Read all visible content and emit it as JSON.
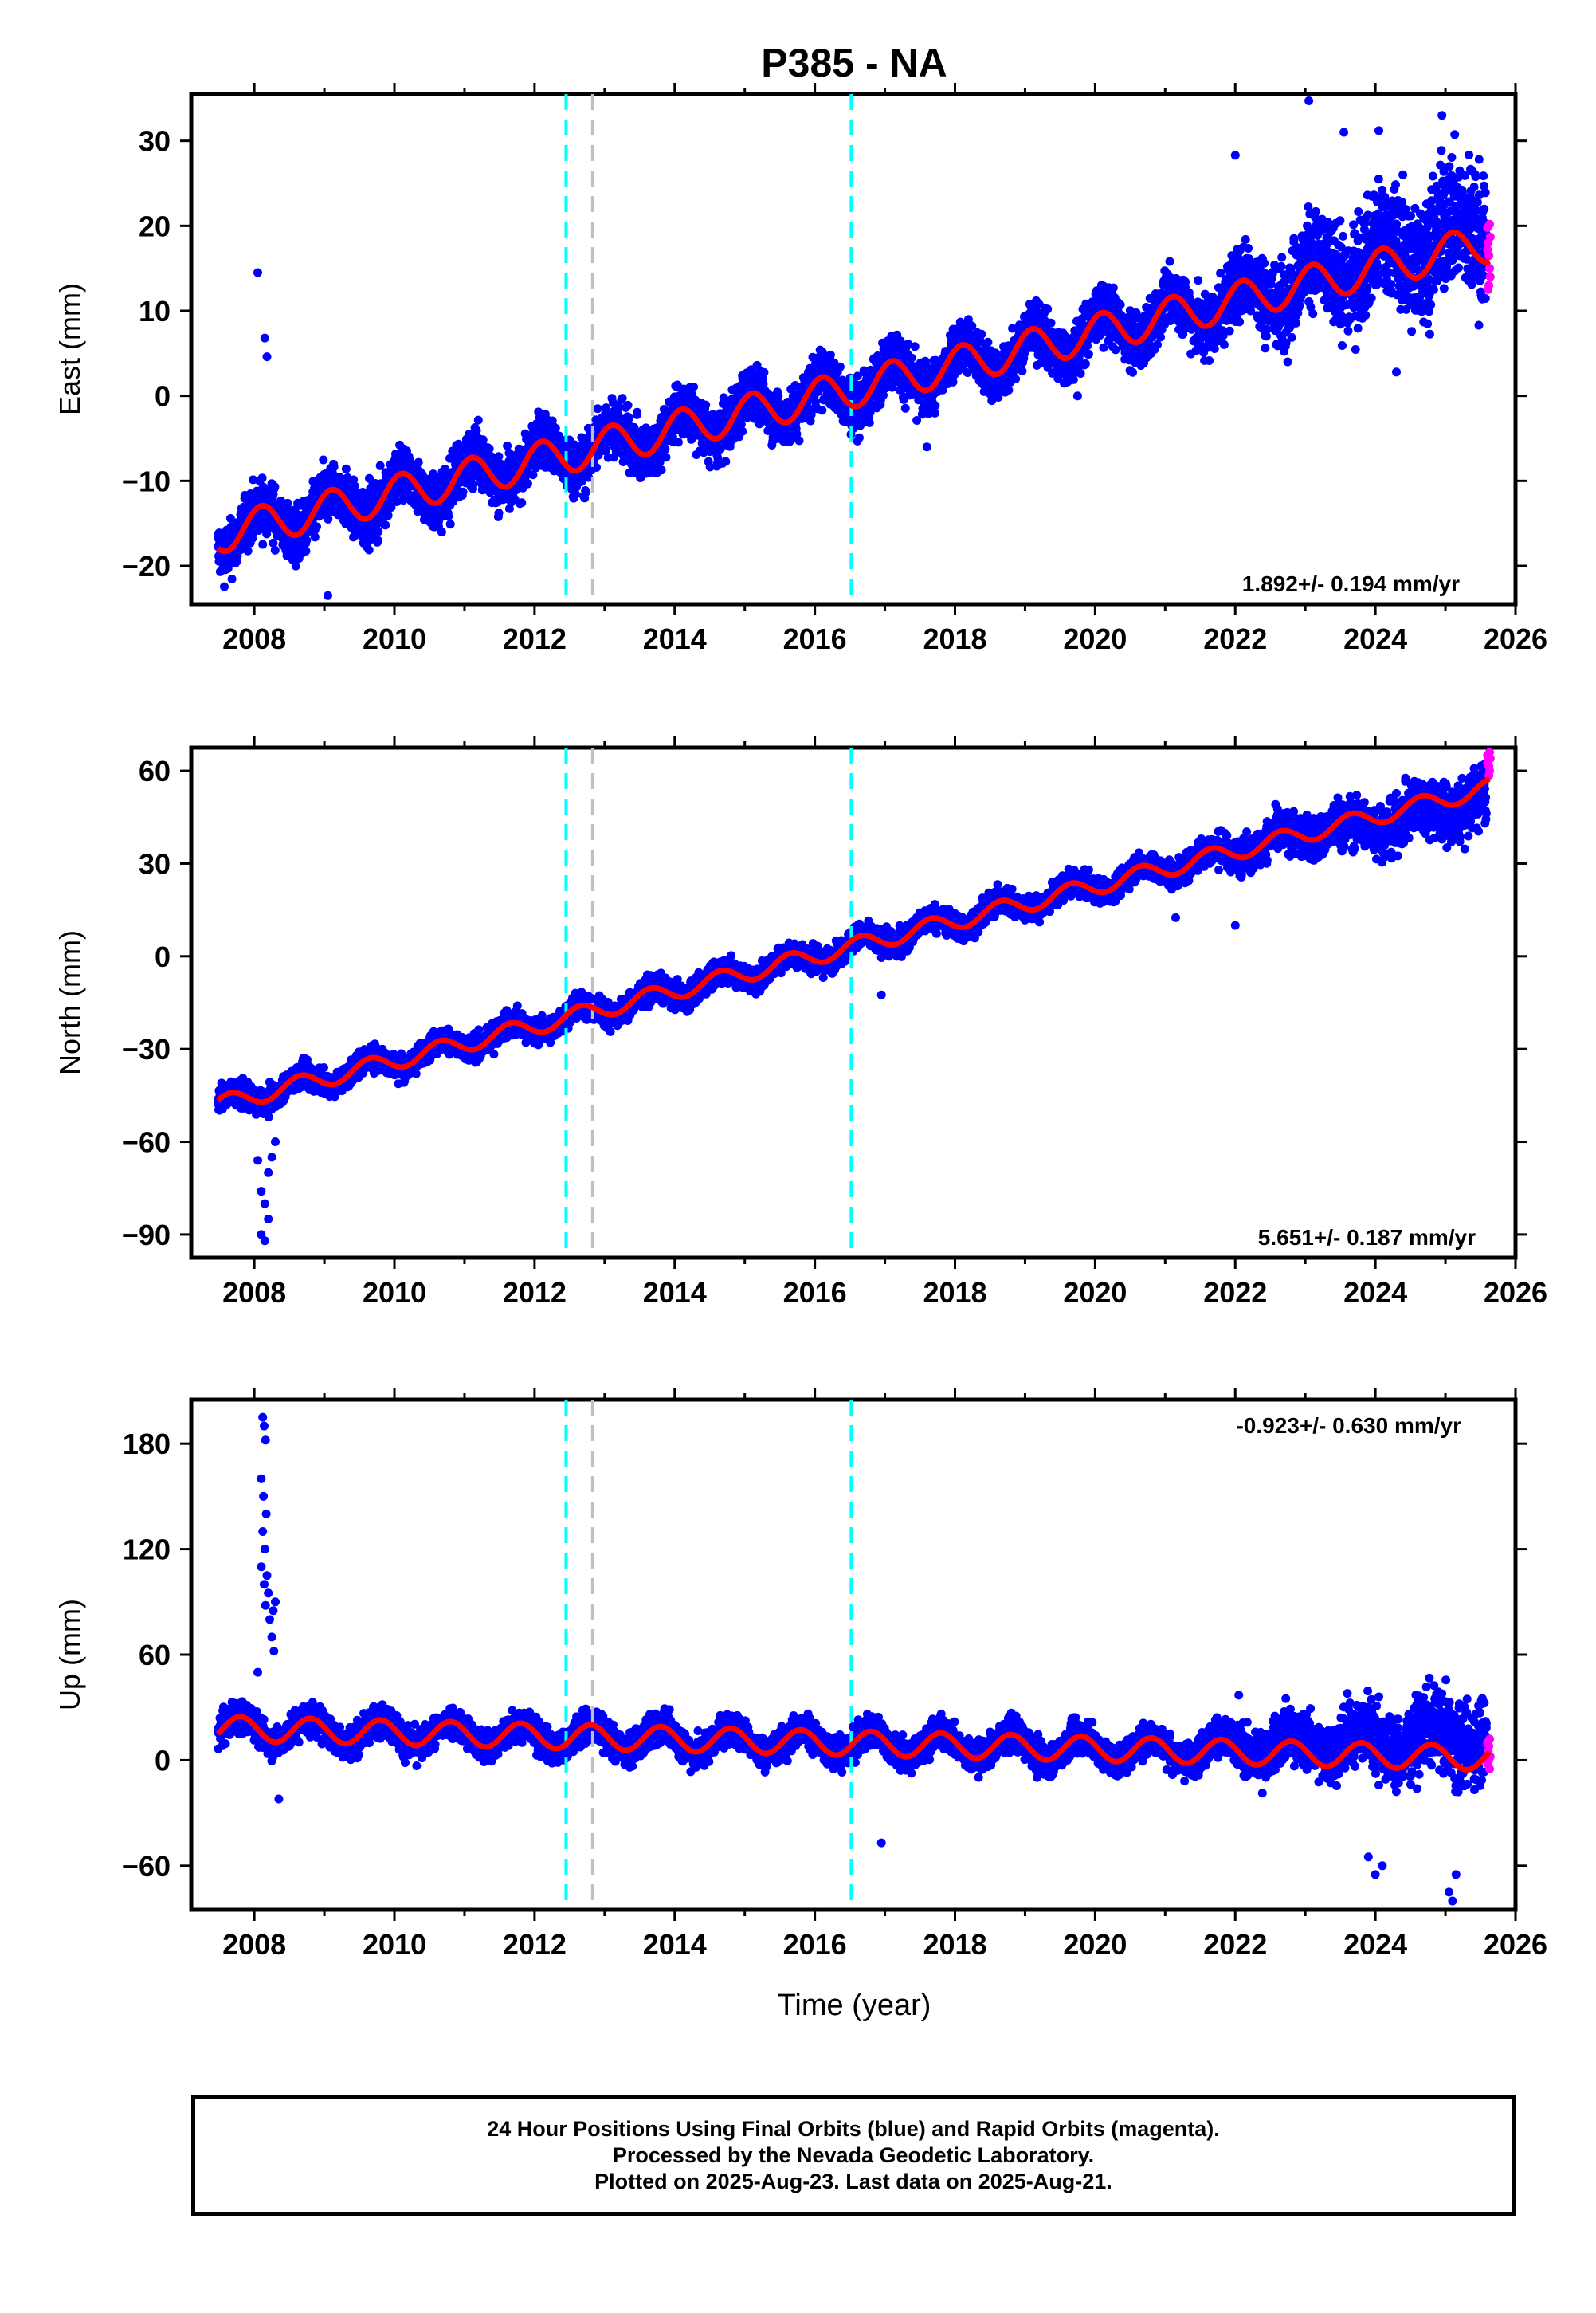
{
  "title": "P385 - NA",
  "xlabel": "Time (year)",
  "caption": {
    "line1": "24 Hour Positions Using Final Orbits (blue) and Rapid Orbits (magenta).",
    "line2": "Processed by the Nevada Geodetic Laboratory.",
    "line3": "Plotted on 2025-Aug-23. Last data on 2025-Aug-21."
  },
  "colors": {
    "final": "#0000ff",
    "rapid": "#ff00ff",
    "model": "#ff0000",
    "event_cyan": "#00ffff",
    "event_gray": "#c0c0c0"
  },
  "chart_data": [
    {
      "type": "scatter",
      "name": "east",
      "ylabel": "East (mm)",
      "xlim": [
        2007.1,
        2026.0
      ],
      "ylim": [
        -24.5,
        35.5
      ],
      "xticks": [
        2008,
        2010,
        2012,
        2014,
        2016,
        2018,
        2020,
        2022,
        2024,
        2026
      ],
      "yticks": [
        -20,
        -10,
        0,
        10,
        20,
        30
      ],
      "rate_label": "1.892+/- 0.194 mm/yr",
      "rate_position": "bottom-right",
      "model": {
        "start": 2007.48,
        "end": 2025.63,
        "offset_at_start": -16.3,
        "rate": 1.892,
        "amplitude": 2.2,
        "phase": 0.85
      },
      "events_cyan": [
        2012.45,
        2016.52
      ],
      "events_gray": [
        2012.83
      ],
      "outliers": [
        [
          2008.05,
          14.5
        ],
        [
          2008.15,
          6.8
        ],
        [
          2008.18,
          4.6
        ],
        [
          2009.05,
          -23.5
        ],
        [
          2022.0,
          28.3
        ],
        [
          2023.05,
          34.7
        ],
        [
          2024.05,
          31.2
        ],
        [
          2024.95,
          33.0
        ],
        [
          2023.55,
          31.0
        ],
        [
          2016.05,
          0.5
        ],
        [
          2019.75,
          0.0
        ],
        [
          2021.95,
          16.5
        ],
        [
          2017.6,
          -6.0
        ],
        [
          2012.9,
          -1.5
        ],
        [
          2024.3,
          2.8
        ]
      ],
      "rapid_points": [
        [
          2025.6,
          19.8
        ],
        [
          2025.61,
          18.0
        ],
        [
          2025.62,
          16.5
        ],
        [
          2025.63,
          15.0
        ],
        [
          2025.64,
          14.0
        ],
        [
          2025.62,
          13.0
        ],
        [
          2025.6,
          17.2
        ],
        [
          2025.63,
          20.2
        ],
        [
          2025.61,
          12.5
        ],
        [
          2025.64,
          18.7
        ]
      ]
    },
    {
      "type": "scatter",
      "name": "north",
      "ylabel": "North (mm)",
      "xlim": [
        2007.1,
        2026.0
      ],
      "ylim": [
        -97.5,
        67.5
      ],
      "xticks": [
        2008,
        2010,
        2012,
        2014,
        2016,
        2018,
        2020,
        2022,
        2024,
        2026
      ],
      "yticks": [
        -90,
        -60,
        -30,
        0,
        30,
        60
      ],
      "rate_label": "5.651+/- 0.187 mm/yr",
      "rate_position": "bottom-right",
      "model": {
        "start": 2007.48,
        "end": 2025.63,
        "offset_at_start": -48.0,
        "rate": 5.651,
        "amplitude": 2.8,
        "phase": 0.4
      },
      "events_cyan": [
        2012.45,
        2016.52
      ],
      "events_gray": [
        2012.83
      ],
      "outliers": [
        [
          2008.1,
          -90.0
        ],
        [
          2008.15,
          -92.0
        ],
        [
          2008.2,
          -85.0
        ],
        [
          2008.1,
          -76.0
        ],
        [
          2008.2,
          -70.0
        ],
        [
          2008.15,
          -80.0
        ],
        [
          2008.25,
          -65.0
        ],
        [
          2008.05,
          -66.0
        ],
        [
          2008.3,
          -60.0
        ],
        [
          2022.0,
          10.0
        ],
        [
          2021.15,
          12.5
        ],
        [
          2016.95,
          -12.5
        ]
      ],
      "rapid_points": [
        [
          2025.6,
          65.0
        ],
        [
          2025.61,
          63.5
        ],
        [
          2025.62,
          61.5
        ],
        [
          2025.63,
          60.0
        ],
        [
          2025.64,
          64.0
        ],
        [
          2025.62,
          58.5
        ],
        [
          2025.6,
          62.5
        ],
        [
          2025.63,
          66.0
        ]
      ]
    },
    {
      "type": "scatter",
      "name": "up",
      "ylabel": "Up (mm)",
      "xlim": [
        2007.1,
        2026.0
      ],
      "ylim": [
        -85.0,
        205.0
      ],
      "xticks": [
        2008,
        2010,
        2012,
        2014,
        2016,
        2018,
        2020,
        2022,
        2024,
        2026
      ],
      "yticks": [
        -60,
        0,
        60,
        120,
        180
      ],
      "rate_label": "-0.923+/- 0.630 mm/yr",
      "rate_position": "top-right",
      "model": {
        "start": 2007.48,
        "end": 2025.63,
        "offset_at_start": 18.0,
        "rate": -0.923,
        "amplitude": 7.0,
        "phase": 0.55
      },
      "events_cyan": [
        2012.45,
        2016.52
      ],
      "events_gray": [
        2012.83
      ],
      "outliers": [
        [
          2008.12,
          195.0
        ],
        [
          2008.14,
          190.0
        ],
        [
          2008.16,
          182.0
        ],
        [
          2008.1,
          160.0
        ],
        [
          2008.13,
          150.0
        ],
        [
          2008.17,
          140.0
        ],
        [
          2008.12,
          130.0
        ],
        [
          2008.15,
          120.0
        ],
        [
          2008.1,
          110.0
        ],
        [
          2008.18,
          105.0
        ],
        [
          2008.14,
          100.0
        ],
        [
          2008.2,
          95.0
        ],
        [
          2008.16,
          88.0
        ],
        [
          2008.22,
          80.0
        ],
        [
          2008.25,
          70.0
        ],
        [
          2008.28,
          62.0
        ],
        [
          2008.05,
          50.0
        ],
        [
          2008.3,
          90.0
        ],
        [
          2008.27,
          85.0
        ],
        [
          2022.05,
          37.0
        ],
        [
          2016.95,
          -47.0
        ],
        [
          2024.0,
          -65.0
        ],
        [
          2025.1,
          -80.0
        ],
        [
          2025.05,
          -75.0
        ],
        [
          2024.1,
          -60.0
        ],
        [
          2025.15,
          -65.0
        ],
        [
          2023.9,
          -55.0
        ],
        [
          2008.35,
          -22.0
        ],
        [
          2023.6,
          38.0
        ],
        [
          2024.05,
          36.0
        ]
      ],
      "rapid_points": [
        [
          2025.6,
          10.0
        ],
        [
          2025.61,
          5.0
        ],
        [
          2025.62,
          0.0
        ],
        [
          2025.63,
          -5.0
        ],
        [
          2025.64,
          2.0
        ],
        [
          2025.62,
          8.0
        ],
        [
          2025.6,
          -2.0
        ],
        [
          2025.63,
          12.0
        ]
      ]
    }
  ]
}
